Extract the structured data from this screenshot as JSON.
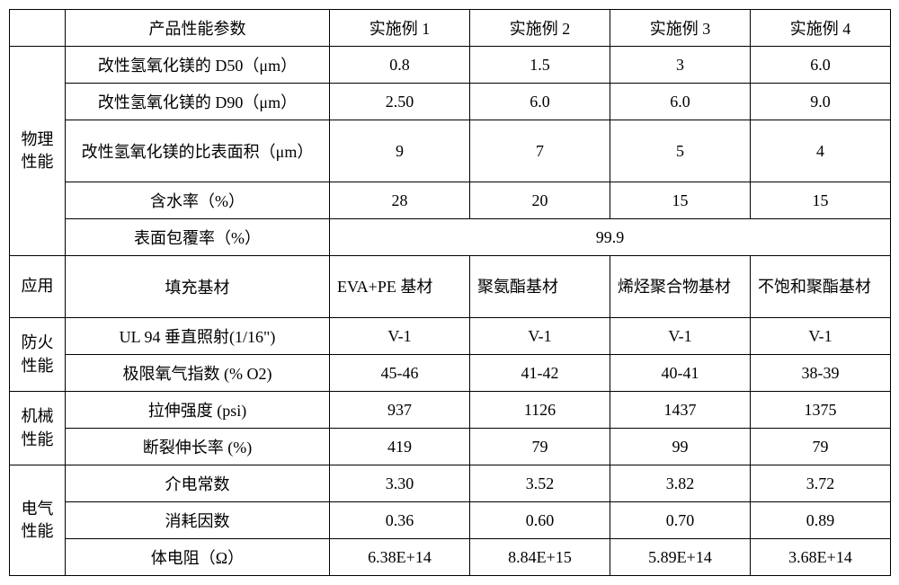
{
  "header": {
    "param": "产品性能参数",
    "ex1": "实施例 1",
    "ex2": "实施例 2",
    "ex3": "实施例 3",
    "ex4": "实施例 4"
  },
  "categories": {
    "physical": "物理\n性能",
    "application": "应用",
    "fire": "防火\n性能",
    "mechanical": "机械\n性能",
    "electrical": "电气\n性能"
  },
  "rows": {
    "d50": {
      "label": "改性氢氧化镁的 D50（μm）",
      "v": [
        "0.8",
        "1.5",
        "3",
        "6.0"
      ]
    },
    "d90": {
      "label": "改性氢氧化镁的 D90（μm）",
      "v": [
        "2.50",
        "6.0",
        "6.0",
        "9.0"
      ]
    },
    "ssa": {
      "label": "改性氢氧化镁的比表面积（μm）",
      "v": [
        "9",
        "7",
        "5",
        "4"
      ]
    },
    "water": {
      "label": "含水率（%）",
      "v": [
        "28",
        "20",
        "15",
        "15"
      ]
    },
    "coverage": {
      "label": "表面包覆率（%）",
      "merged": "99.9"
    },
    "substrate": {
      "label": "填充基材",
      "v": [
        "EVA+PE 基材",
        "聚氨酯基材",
        "烯烃聚合物基材",
        "不饱和聚酯基材"
      ]
    },
    "ul94": {
      "label": "UL 94  垂直照射(1/16\")",
      "v": [
        "V-1",
        "V-1",
        "V-1",
        "V-1"
      ]
    },
    "loi": {
      "label": "极限氧气指数  (% O2)",
      "v": [
        "45-46",
        "41-42",
        "40-41",
        "38-39"
      ]
    },
    "tensile": {
      "label": "拉伸强度  (psi)",
      "v": [
        "937",
        "1126",
        "1437",
        "1375"
      ]
    },
    "elongation": {
      "label": "断裂伸长率  (%)",
      "v": [
        "419",
        "79",
        "99",
        "79"
      ]
    },
    "dielectric": {
      "label": "介电常数",
      "v": [
        "3.30",
        "3.52",
        "3.82",
        "3.72"
      ]
    },
    "dissipation": {
      "label": "消耗因数",
      "v": [
        "0.36",
        "0.60",
        "0.70",
        "0.89"
      ]
    },
    "resistivity": {
      "label": "体电阻（Ω）",
      "v": [
        "6.38E+14",
        "8.84E+15",
        "5.89E+14",
        "3.68E+14"
      ]
    }
  }
}
